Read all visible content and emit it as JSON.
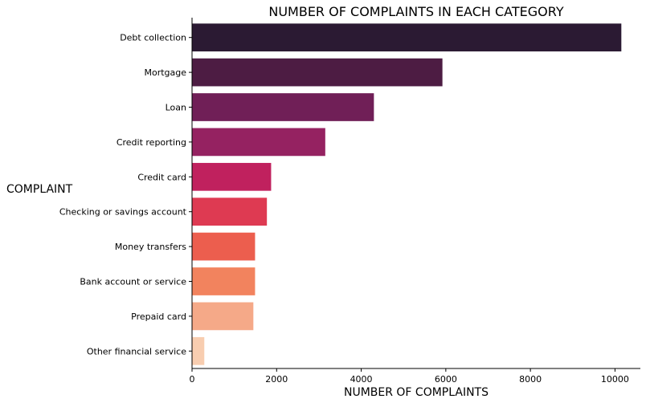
{
  "chart_data": {
    "type": "bar",
    "orientation": "horizontal",
    "title": "NUMBER OF COMPLAINTS IN EACH CATEGORY",
    "xlabel": "NUMBER OF COMPLAINTS",
    "ylabel": "COMPLAINT",
    "xlim": [
      0,
      10600
    ],
    "xticks": [
      0,
      2000,
      4000,
      6000,
      8000,
      10000
    ],
    "grid": false,
    "categories": [
      "Debt collection",
      "Mortgage",
      "Loan",
      "Credit reporting",
      "Credit card",
      "Checking or savings account",
      "Money transfers",
      "Bank account or service",
      "Prepaid card",
      "Other financial service"
    ],
    "values": [
      10150,
      5920,
      4300,
      3150,
      1870,
      1770,
      1490,
      1490,
      1450,
      290
    ],
    "colors": [
      "#2b1a33",
      "#4d1c43",
      "#701f57",
      "#952261",
      "#c0215e",
      "#de3a52",
      "#ec5e4e",
      "#f2835e",
      "#f5a988",
      "#f8cdb0"
    ]
  }
}
